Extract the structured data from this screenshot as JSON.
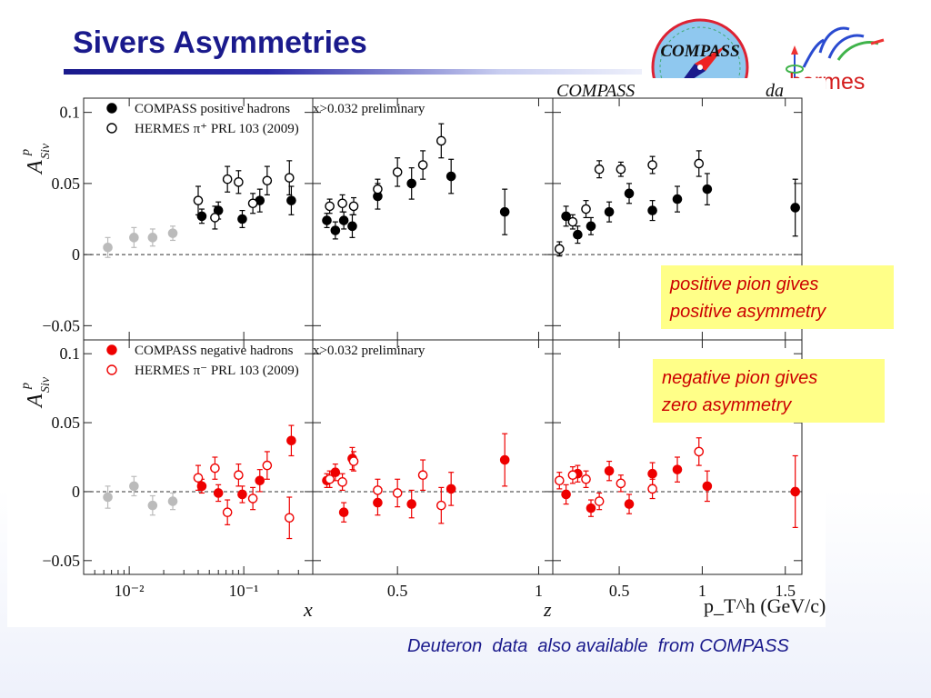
{
  "slide": {
    "title": "Sivers Asymmetries",
    "note_positive": [
      "positive pion gives",
      "positive asymmetry"
    ],
    "note_negative": [
      "negative pion gives",
      "zero asymmetry"
    ],
    "footer": "Deuteron  data  also available  from COMPASS",
    "logo_compass": "COMPASS",
    "logo_hermes": "hermes",
    "colors": {
      "title": "#1a1a8c",
      "note_bg": "#ffff88",
      "note_text": "#cc0000",
      "positive_markers": "#000000",
      "negative_markers": "#ee0000",
      "low_x_markers": "#c0c0c0"
    }
  },
  "chart_data": {
    "type": "scatter",
    "header": "COMPASS",
    "header_suffix": "da",
    "rows": [
      {
        "ylabel": "A^p_Siv",
        "ylim": [
          -0.06,
          0.11
        ],
        "yticks": [
          "0.1",
          "0.05",
          "0",
          "−0.05"
        ],
        "legend": [
          {
            "label": "COMPASS positive hadrons",
            "filled": true
          },
          {
            "label": "HERMES π⁺ PRL 103 (2009)",
            "filled": false
          }
        ],
        "legend_note": "x>0.032 preliminary"
      },
      {
        "ylabel": "A^p_Siv",
        "ylim": [
          -0.06,
          0.11
        ],
        "yticks": [
          "0.1",
          "0.05",
          "0",
          "−0.05"
        ],
        "legend": [
          {
            "label": "COMPASS negative  hadrons",
            "filled": true
          },
          {
            "label": "HERMES π⁻ PRL 103 (2009)",
            "filled": false
          }
        ],
        "legend_note": "x>0.032  preliminary"
      }
    ],
    "columns": [
      {
        "xlabel": "x",
        "xscale": "log",
        "xlim": [
          0.004,
          0.4
        ],
        "xticks": [
          "10⁻²",
          "10⁻¹"
        ]
      },
      {
        "xlabel": "z",
        "xscale": "linear",
        "xlim": [
          0.2,
          1.05
        ],
        "xticks": [
          "0.5",
          "1"
        ]
      },
      {
        "xlabel": "p_T^h (GeV/c)",
        "xscale": "linear",
        "xlim": [
          0.1,
          1.6
        ],
        "xticks": [
          "0.5",
          "1",
          "1.5"
        ]
      }
    ],
    "series": [
      {
        "name": "COMPASS positive hadrons",
        "row": 0,
        "col": 0,
        "style": "low",
        "x": [
          0.0065,
          0.011,
          0.016,
          0.024
        ],
        "y": [
          0.005,
          0.012,
          0.012,
          0.015
        ],
        "err": [
          0.007,
          0.007,
          0.006,
          0.005
        ]
      },
      {
        "name": "COMPASS positive hadrons",
        "row": 0,
        "col": 0,
        "style": "compass",
        "x": [
          0.043,
          0.06,
          0.097,
          0.138,
          0.26
        ],
        "y": [
          0.027,
          0.031,
          0.025,
          0.038,
          0.038
        ],
        "err": [
          0.005,
          0.006,
          0.006,
          0.008,
          0.01
        ]
      },
      {
        "name": "HERMES π⁺ PRL 103 (2009)",
        "row": 0,
        "col": 0,
        "style": "hermes",
        "x": [
          0.04,
          0.056,
          0.072,
          0.09,
          0.12,
          0.16,
          0.25
        ],
        "y": [
          0.038,
          0.026,
          0.053,
          0.051,
          0.036,
          0.052,
          0.054
        ],
        "err": [
          0.01,
          0.008,
          0.009,
          0.008,
          0.007,
          0.01,
          0.012
        ]
      },
      {
        "name": "COMPASS positive hadrons",
        "row": 0,
        "col": 1,
        "style": "compass",
        "x": [
          0.25,
          0.28,
          0.31,
          0.34,
          0.43,
          0.55,
          0.69,
          0.88
        ],
        "y": [
          0.024,
          0.017,
          0.024,
          0.02,
          0.041,
          0.05,
          0.055,
          0.03
        ],
        "err": [
          0.005,
          0.006,
          0.006,
          0.008,
          0.009,
          0.011,
          0.012,
          0.016
        ]
      },
      {
        "name": "HERMES π⁺ PRL 103 (2009)",
        "row": 0,
        "col": 1,
        "style": "hermes",
        "x": [
          0.26,
          0.305,
          0.345,
          0.43,
          0.5,
          0.59,
          0.655
        ],
        "y": [
          0.034,
          0.036,
          0.034,
          0.046,
          0.058,
          0.063,
          0.08
        ],
        "err": [
          0.005,
          0.006,
          0.006,
          0.007,
          0.01,
          0.01,
          0.012
        ]
      },
      {
        "name": "COMPASS positive hadrons",
        "row": 0,
        "col": 2,
        "style": "compass",
        "x": [
          0.18,
          0.25,
          0.33,
          0.44,
          0.56,
          0.7,
          0.85,
          1.03,
          1.56
        ],
        "y": [
          0.027,
          0.014,
          0.02,
          0.03,
          0.043,
          0.031,
          0.039,
          0.046,
          0.033
        ],
        "err": [
          0.007,
          0.006,
          0.006,
          0.007,
          0.007,
          0.007,
          0.009,
          0.011,
          0.02
        ]
      },
      {
        "name": "HERMES π⁺ PRL 103 (2009)",
        "row": 0,
        "col": 2,
        "style": "hermes",
        "x": [
          0.14,
          0.22,
          0.3,
          0.38,
          0.51,
          0.7,
          0.98
        ],
        "y": [
          0.004,
          0.023,
          0.032,
          0.06,
          0.06,
          0.063,
          0.064
        ],
        "err": [
          0.005,
          0.005,
          0.006,
          0.006,
          0.005,
          0.006,
          0.009
        ]
      },
      {
        "name": "COMPASS negative  hadrons",
        "row": 1,
        "col": 0,
        "style": "low",
        "x": [
          0.0065,
          0.011,
          0.016,
          0.024
        ],
        "y": [
          -0.004,
          0.004,
          -0.01,
          -0.007
        ],
        "err": [
          0.008,
          0.007,
          0.007,
          0.006
        ]
      },
      {
        "name": "COMPASS negative  hadrons",
        "row": 1,
        "col": 0,
        "style": "compass-red",
        "x": [
          0.043,
          0.06,
          0.097,
          0.138,
          0.26
        ],
        "y": [
          0.004,
          -0.001,
          -0.002,
          0.008,
          0.037
        ],
        "err": [
          0.005,
          0.006,
          0.006,
          0.008,
          0.011
        ]
      },
      {
        "name": "HERMES π⁻ PRL 103 (2009)",
        "row": 1,
        "col": 0,
        "style": "hermes-red",
        "x": [
          0.04,
          0.056,
          0.072,
          0.09,
          0.12,
          0.16,
          0.25
        ],
        "y": [
          0.01,
          0.017,
          -0.015,
          0.012,
          -0.005,
          0.019,
          -0.019
        ],
        "err": [
          0.009,
          0.008,
          0.009,
          0.008,
          0.008,
          0.01,
          0.015
        ]
      },
      {
        "name": "COMPASS negative  hadrons",
        "row": 1,
        "col": 1,
        "style": "compass-red",
        "x": [
          0.25,
          0.28,
          0.31,
          0.34,
          0.43,
          0.55,
          0.69,
          0.88
        ],
        "y": [
          0.008,
          0.014,
          -0.015,
          0.024,
          -0.008,
          -0.009,
          0.002,
          0.023
        ],
        "err": [
          0.005,
          0.006,
          0.007,
          0.008,
          0.009,
          0.01,
          0.012,
          0.019
        ]
      },
      {
        "name": "HERMES π⁻ PRL 103 (2009)",
        "row": 1,
        "col": 1,
        "style": "hermes-red",
        "x": [
          0.26,
          0.305,
          0.345,
          0.43,
          0.5,
          0.59,
          0.655
        ],
        "y": [
          0.009,
          0.007,
          0.022,
          0.001,
          -0.001,
          0.012,
          -0.01
        ],
        "err": [
          0.006,
          0.006,
          0.007,
          0.008,
          0.01,
          0.011,
          0.013
        ]
      },
      {
        "name": "COMPASS negative  hadrons",
        "row": 1,
        "col": 2,
        "style": "compass-red",
        "x": [
          0.18,
          0.25,
          0.33,
          0.44,
          0.56,
          0.7,
          0.85,
          1.03,
          1.56
        ],
        "y": [
          -0.002,
          0.013,
          -0.012,
          0.015,
          -0.009,
          0.013,
          0.016,
          0.004,
          0.0
        ],
        "err": [
          0.007,
          0.006,
          0.006,
          0.007,
          0.007,
          0.008,
          0.009,
          0.011,
          0.026
        ]
      },
      {
        "name": "HERMES π⁻ PRL 103 (2009)",
        "row": 1,
        "col": 2,
        "style": "hermes-red",
        "x": [
          0.14,
          0.22,
          0.3,
          0.38,
          0.51,
          0.7,
          0.98
        ],
        "y": [
          0.008,
          0.012,
          0.009,
          -0.007,
          0.006,
          0.002,
          0.029
        ],
        "err": [
          0.006,
          0.006,
          0.006,
          0.006,
          0.006,
          0.007,
          0.01
        ]
      }
    ],
    "zero_line": "dashed",
    "grid": false
  }
}
